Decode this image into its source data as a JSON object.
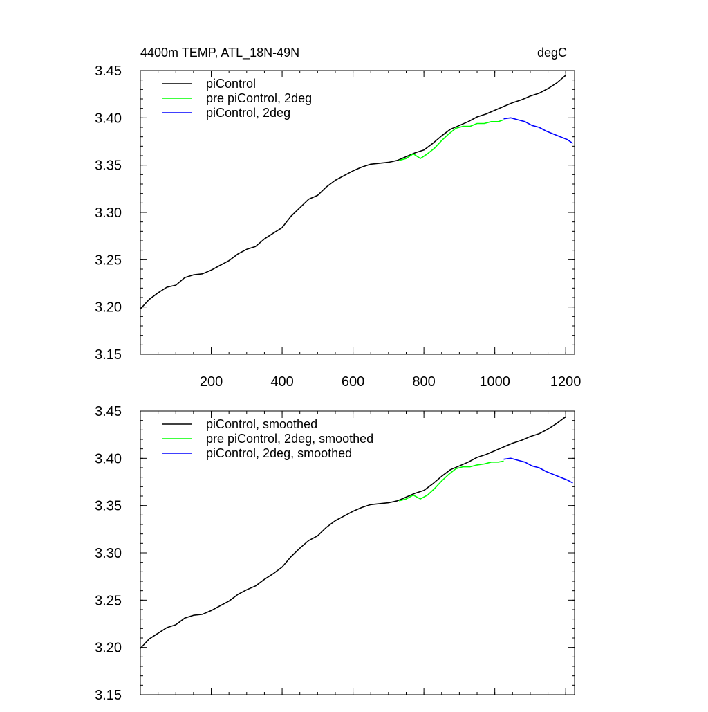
{
  "chart_data": [
    {
      "type": "line",
      "title": "4400m TEMP, ATL_18N-49N",
      "units": "degC",
      "xlim": [
        0,
        1225
      ],
      "ylim": [
        3.15,
        3.45
      ],
      "x_ticks": [
        200,
        400,
        600,
        800,
        1000,
        1200
      ],
      "x_tick_labels": [
        "200",
        "400",
        "600",
        "800",
        "1000",
        "1200"
      ],
      "y_ticks": [
        3.15,
        3.2,
        3.25,
        3.3,
        3.35,
        3.4,
        3.45
      ],
      "y_tick_labels": [
        "3.15",
        "3.20",
        "3.25",
        "3.30",
        "3.35",
        "3.40",
        "3.45"
      ],
      "grid": false,
      "legend": "top-left",
      "series": [
        {
          "name": "piControl",
          "color": "#000000",
          "x": [
            0,
            25,
            50,
            75,
            100,
            125,
            150,
            175,
            200,
            225,
            250,
            275,
            300,
            325,
            350,
            375,
            400,
            425,
            450,
            475,
            500,
            525,
            550,
            575,
            600,
            625,
            650,
            675,
            700,
            725,
            750,
            775,
            800,
            825,
            850,
            875,
            900,
            925,
            950,
            975,
            1000,
            1025,
            1050,
            1075,
            1100,
            1125,
            1150,
            1175,
            1200
          ],
          "y": [
            3.198,
            3.208,
            3.215,
            3.221,
            3.223,
            3.231,
            3.234,
            3.235,
            3.239,
            3.244,
            3.249,
            3.256,
            3.261,
            3.264,
            3.272,
            3.278,
            3.284,
            3.296,
            3.305,
            3.314,
            3.318,
            3.327,
            3.334,
            3.339,
            3.344,
            3.348,
            3.351,
            3.352,
            3.353,
            3.355,
            3.359,
            3.363,
            3.366,
            3.373,
            3.381,
            3.388,
            3.392,
            3.396,
            3.401,
            3.404,
            3.408,
            3.412,
            3.416,
            3.419,
            3.423,
            3.426,
            3.431,
            3.437,
            3.445
          ]
        },
        {
          "name": "pre piControl, 2deg",
          "color": "#00ff00",
          "x": [
            730,
            750,
            770,
            790,
            810,
            830,
            850,
            870,
            890,
            910,
            930,
            950,
            970,
            990,
            1010,
            1025
          ],
          "y": [
            3.355,
            3.357,
            3.362,
            3.357,
            3.362,
            3.368,
            3.376,
            3.383,
            3.389,
            3.391,
            3.391,
            3.394,
            3.394,
            3.396,
            3.396,
            3.398
          ]
        },
        {
          "name": "piControl, 2deg",
          "color": "#0000ff",
          "x": [
            1025,
            1045,
            1065,
            1085,
            1105,
            1125,
            1145,
            1165,
            1185,
            1205,
            1220
          ],
          "y": [
            3.399,
            3.4,
            3.398,
            3.396,
            3.392,
            3.39,
            3.386,
            3.383,
            3.38,
            3.377,
            3.373
          ]
        }
      ]
    },
    {
      "type": "line",
      "xlim": [
        0,
        1225
      ],
      "ylim": [
        3.15,
        3.45
      ],
      "x_ticks": [
        200,
        400,
        600,
        800,
        1000,
        1200
      ],
      "x_tick_labels": [],
      "y_ticks": [
        3.15,
        3.2,
        3.25,
        3.3,
        3.35,
        3.4,
        3.45
      ],
      "y_tick_labels": [
        "3.15",
        "3.20",
        "3.25",
        "3.30",
        "3.35",
        "3.40",
        "3.45"
      ],
      "grid": false,
      "legend": "top-left",
      "series": [
        {
          "name": "piControl, smoothed",
          "color": "#000000",
          "x": [
            0,
            25,
            50,
            75,
            100,
            125,
            150,
            175,
            200,
            225,
            250,
            275,
            300,
            325,
            350,
            375,
            400,
            425,
            450,
            475,
            500,
            525,
            550,
            575,
            600,
            625,
            650,
            675,
            700,
            725,
            750,
            775,
            800,
            825,
            850,
            875,
            900,
            925,
            950,
            975,
            1000,
            1025,
            1050,
            1075,
            1100,
            1125,
            1150,
            1175,
            1200
          ],
          "y": [
            3.199,
            3.209,
            3.215,
            3.221,
            3.224,
            3.231,
            3.234,
            3.235,
            3.239,
            3.244,
            3.249,
            3.256,
            3.261,
            3.265,
            3.272,
            3.278,
            3.285,
            3.296,
            3.305,
            3.313,
            3.318,
            3.327,
            3.334,
            3.339,
            3.344,
            3.348,
            3.351,
            3.352,
            3.353,
            3.355,
            3.359,
            3.363,
            3.366,
            3.373,
            3.381,
            3.388,
            3.392,
            3.396,
            3.401,
            3.404,
            3.408,
            3.412,
            3.416,
            3.419,
            3.423,
            3.426,
            3.431,
            3.437,
            3.444
          ]
        },
        {
          "name": "pre piControl, 2deg, smoothed",
          "color": "#00ff00",
          "x": [
            730,
            750,
            770,
            790,
            810,
            830,
            850,
            870,
            890,
            910,
            930,
            950,
            970,
            990,
            1010,
            1025
          ],
          "y": [
            3.355,
            3.357,
            3.361,
            3.357,
            3.361,
            3.368,
            3.376,
            3.383,
            3.389,
            3.391,
            3.391,
            3.393,
            3.394,
            3.396,
            3.396,
            3.397
          ]
        },
        {
          "name": "piControl, 2deg, smoothed",
          "color": "#0000ff",
          "x": [
            1025,
            1045,
            1065,
            1085,
            1105,
            1125,
            1145,
            1165,
            1185,
            1205,
            1220
          ],
          "y": [
            3.399,
            3.4,
            3.398,
            3.396,
            3.392,
            3.39,
            3.386,
            3.383,
            3.38,
            3.377,
            3.374
          ]
        }
      ]
    }
  ]
}
